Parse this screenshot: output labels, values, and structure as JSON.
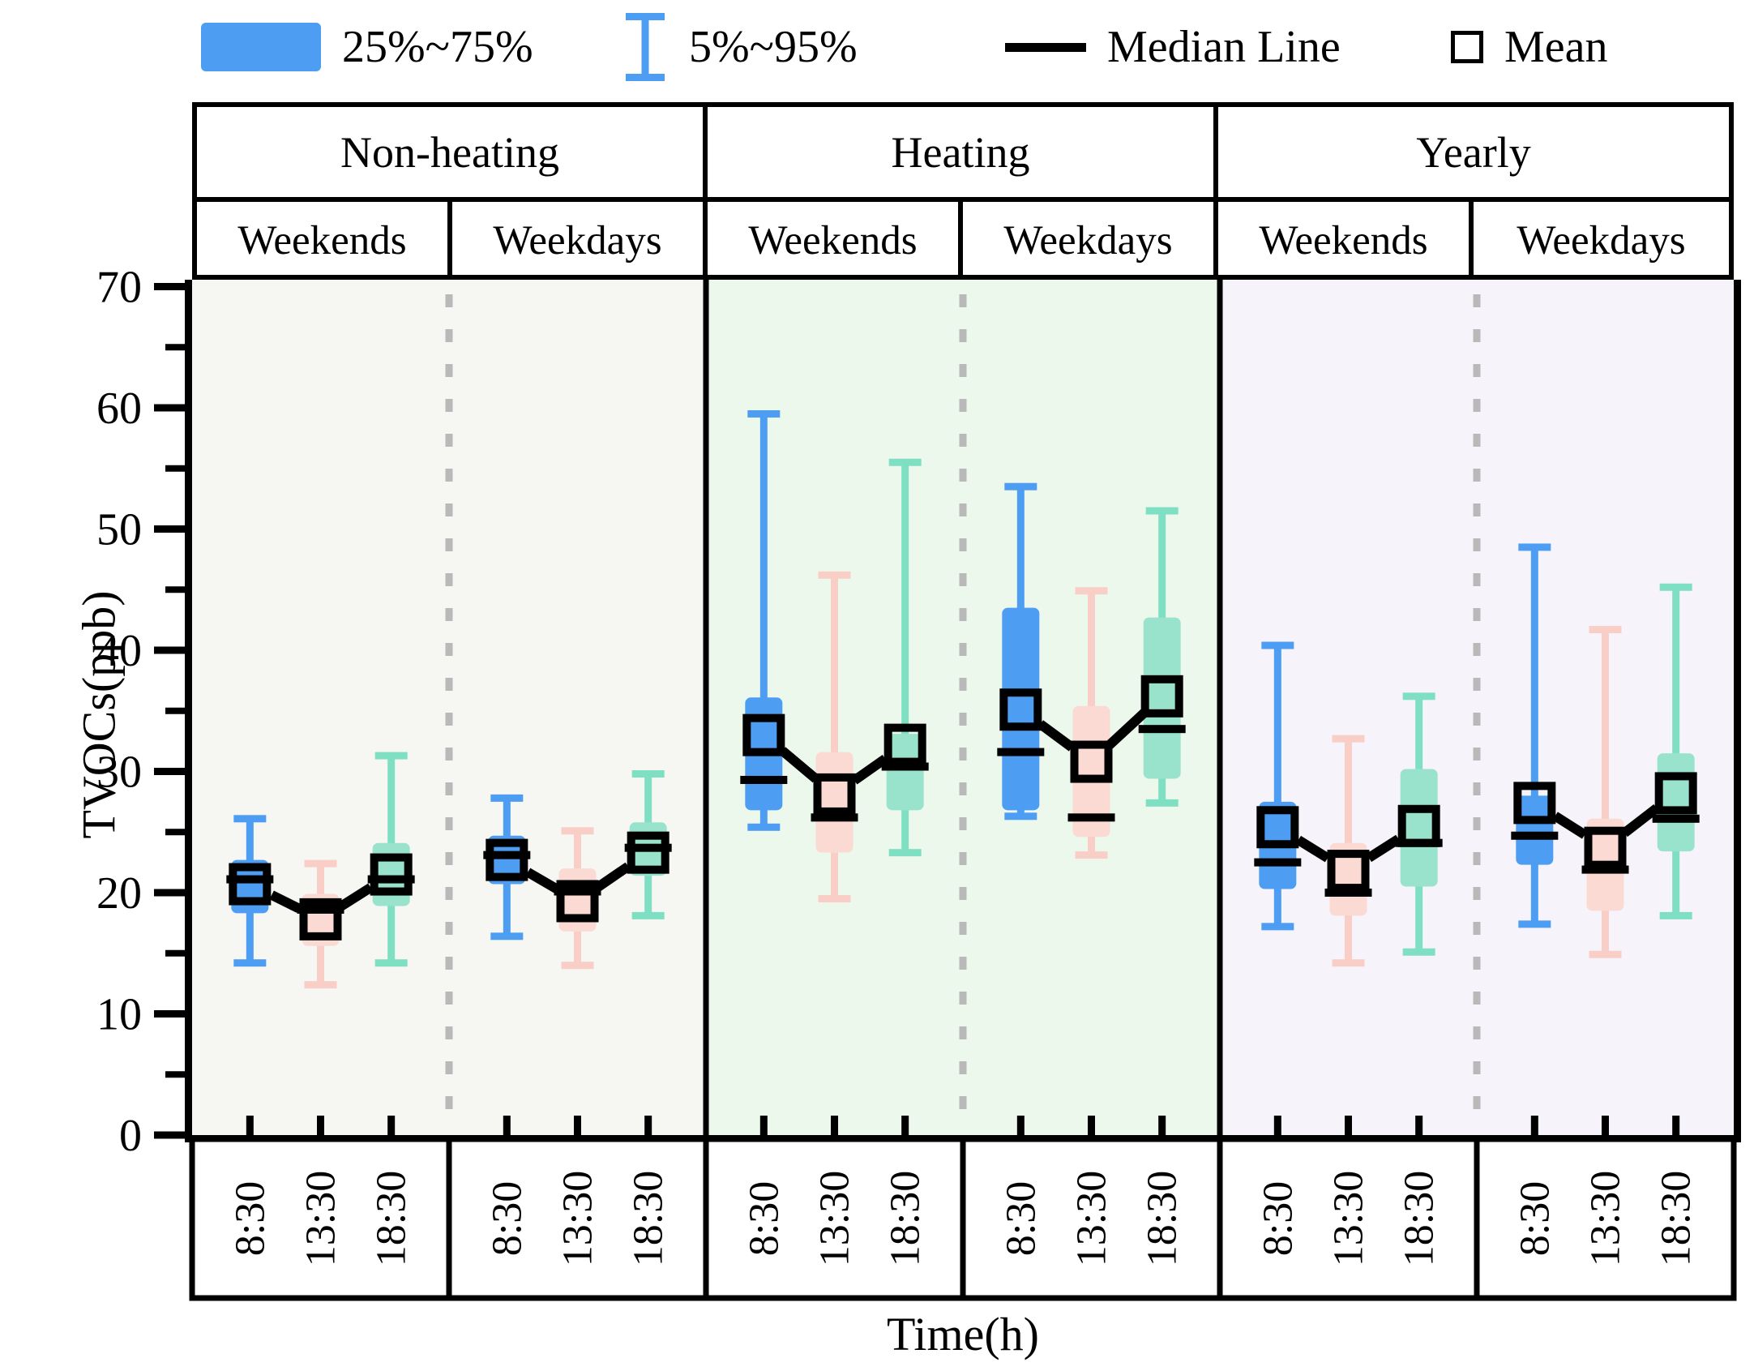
{
  "legend": {
    "items": [
      {
        "label": "25%~75%",
        "swatch": "filled-box"
      },
      {
        "label": "5%~95%",
        "swatch": "whisker-ibeam"
      },
      {
        "label": "Median Line",
        "swatch": "black-line"
      },
      {
        "label": "Mean",
        "swatch": "open-square"
      }
    ]
  },
  "header": {
    "sections": [
      "Non-heating",
      "Heating",
      "Yearly"
    ],
    "subpanels": [
      "Weekends",
      "Weekdays",
      "Weekends",
      "Weekdays",
      "Weekends",
      "Weekdays"
    ]
  },
  "axes": {
    "y_label": "TVOCs(ppb)",
    "x_label": "Time(h)",
    "y_major_ticks": [
      0,
      10,
      20,
      30,
      40,
      50,
      60,
      70
    ],
    "x_ticks": [
      "8:30",
      "13:30",
      "18:30"
    ]
  },
  "colors": {
    "box_fill": [
      "#4D9DF3",
      "#FBDAD3",
      "#99E3CC"
    ],
    "whisker": [
      "#4D9DF3",
      "#F9CEC7",
      "#7FDFC3"
    ],
    "section_bg": [
      "#F6F6F3",
      "#EDF8ED",
      "#F6F4FA"
    ],
    "dashed_divider": "#B9B9B9",
    "marker": "#000000"
  },
  "chart_data": {
    "type": "box",
    "ylabel": "TVOCs(ppb)",
    "xlabel": "Time(h)",
    "ylim": [
      0,
      70
    ],
    "y_major_ticks": [
      0,
      10,
      20,
      30,
      40,
      50,
      60,
      70
    ],
    "legend": [
      "25%~75%",
      "5%~95%",
      "Median Line",
      "Mean"
    ],
    "whisker_range": "5%~95%",
    "box_range": "25%~75%",
    "sections": [
      {
        "label": "Non-heating",
        "subpanels": [
          {
            "label": "Weekends",
            "boxes": [
              {
                "time": "8:30",
                "p5": 14.2,
                "q1": 18.3,
                "median": 21.1,
                "mean": 20.7,
                "q3": 22.7,
                "p95": 26.1
              },
              {
                "time": "13:30",
                "p5": 12.4,
                "q1": 15.6,
                "median": 18.6,
                "mean": 17.8,
                "q3": 19.9,
                "p95": 22.4
              },
              {
                "time": "18:30",
                "p5": 14.2,
                "q1": 18.9,
                "median": 21.1,
                "mean": 21.5,
                "q3": 24.1,
                "p95": 31.3
              }
            ]
          },
          {
            "label": "Weekdays",
            "boxes": [
              {
                "time": "8:30",
                "p5": 16.4,
                "q1": 20.7,
                "median": 23.1,
                "mean": 22.7,
                "q3": 24.7,
                "p95": 27.8
              },
              {
                "time": "13:30",
                "p5": 14.0,
                "q1": 16.8,
                "median": 20.1,
                "mean": 19.3,
                "q3": 22.0,
                "p95": 25.1
              },
              {
                "time": "18:30",
                "p5": 18.1,
                "q1": 21.4,
                "median": 23.7,
                "mean": 23.3,
                "q3": 25.8,
                "p95": 29.8
              }
            ]
          }
        ]
      },
      {
        "label": "Heating",
        "subpanels": [
          {
            "label": "Weekends",
            "boxes": [
              {
                "time": "8:30",
                "p5": 25.4,
                "q1": 26.8,
                "median": 29.3,
                "mean": 33.0,
                "q3": 36.1,
                "p95": 59.5
              },
              {
                "time": "13:30",
                "p5": 19.5,
                "q1": 23.3,
                "median": 26.2,
                "mean": 28.1,
                "q3": 31.6,
                "p95": 46.2
              },
              {
                "time": "18:30",
                "p5": 23.3,
                "q1": 26.8,
                "median": 30.4,
                "mean": 32.2,
                "q3": 33.1,
                "p95": 55.5
              }
            ]
          },
          {
            "label": "Weekdays",
            "boxes": [
              {
                "time": "8:30",
                "p5": 26.3,
                "q1": 26.8,
                "median": 31.6,
                "mean": 35.1,
                "q3": 43.5,
                "p95": 53.5
              },
              {
                "time": "13:30",
                "p5": 23.1,
                "q1": 24.6,
                "median": 26.2,
                "mean": 30.8,
                "q3": 35.4,
                "p95": 44.9
              },
              {
                "time": "18:30",
                "p5": 27.4,
                "q1": 29.4,
                "median": 33.5,
                "mean": 36.2,
                "q3": 42.7,
                "p95": 51.5
              }
            ]
          }
        ]
      },
      {
        "label": "Yearly",
        "subpanels": [
          {
            "label": "Weekends",
            "boxes": [
              {
                "time": "8:30",
                "p5": 17.2,
                "q1": 20.3,
                "median": 22.5,
                "mean": 25.4,
                "q3": 27.5,
                "p95": 40.4
              },
              {
                "time": "13:30",
                "p5": 14.2,
                "q1": 18.1,
                "median": 20.0,
                "mean": 21.8,
                "q3": 24.1,
                "p95": 32.7
              },
              {
                "time": "18:30",
                "p5": 15.1,
                "q1": 20.5,
                "median": 24.1,
                "mean": 25.5,
                "q3": 30.2,
                "p95": 36.2
              }
            ]
          },
          {
            "label": "Weekdays",
            "boxes": [
              {
                "time": "8:30",
                "p5": 17.4,
                "q1": 22.3,
                "median": 24.7,
                "mean": 27.4,
                "q3": 28.0,
                "p95": 48.5
              },
              {
                "time": "13:30",
                "p5": 14.9,
                "q1": 18.5,
                "median": 21.9,
                "mean": 23.7,
                "q3": 26.1,
                "p95": 41.7
              },
              {
                "time": "18:30",
                "p5": 18.1,
                "q1": 23.4,
                "median": 26.1,
                "mean": 28.2,
                "q3": 31.5,
                "p95": 45.2
              }
            ]
          }
        ]
      }
    ]
  }
}
